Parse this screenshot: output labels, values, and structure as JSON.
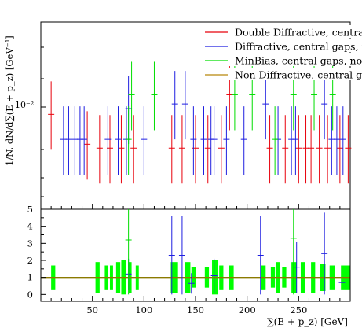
{
  "chart_data": {
    "type": "histogram",
    "upper": {
      "ylabel": "1/N, dN/d∑(E + p_z) [GeV⁻¹]",
      "ytick_label": "10⁻²",
      "xlim": [
        0,
        300
      ],
      "log_y": true,
      "legend_placement": "top-right",
      "series": [
        {
          "name": "Double Diffractive, central gaps, no jet",
          "color": "#e8000b",
          "points": [
            [
              10,
              0.0091
            ],
            [
              45,
              0.0062
            ],
            [
              57,
              0.0059
            ],
            [
              67,
              0.0059
            ],
            [
              78,
              0.0059
            ],
            [
              90,
              0.0059
            ],
            [
              127,
              0.0059
            ],
            [
              137,
              0.0059
            ],
            [
              150,
              0.0059
            ],
            [
              162,
              0.0059
            ],
            [
              175,
              0.0059
            ],
            [
              183,
              0.0117
            ],
            [
              222,
              0.0059
            ],
            [
              237,
              0.0059
            ],
            [
              250,
              0.0059
            ],
            [
              257,
              0.0059
            ],
            [
              262,
              0.0059
            ],
            [
              270,
              0.0059
            ],
            [
              278,
              0.0059
            ],
            [
              290,
              0.0059
            ],
            [
              298,
              0.0059
            ]
          ]
        },
        {
          "name": "Diffractive, central gaps, no jet",
          "color": "#1f1fe0",
          "points": [
            [
              22,
              0.0066
            ],
            [
              27,
              0.0066
            ],
            [
              33,
              0.0066
            ],
            [
              38,
              0.0066
            ],
            [
              42,
              0.0066
            ],
            [
              65,
              0.0066
            ],
            [
              75,
              0.0066
            ],
            [
              83,
              0.0066
            ],
            [
              85,
              0.0098
            ],
            [
              100,
              0.0066
            ],
            [
              130,
              0.0104
            ],
            [
              140,
              0.0104
            ],
            [
              148,
              0.0066
            ],
            [
              158,
              0.0066
            ],
            [
              165,
              0.0066
            ],
            [
              168,
              0.0066
            ],
            [
              180,
              0.0066
            ],
            [
              197,
              0.0066
            ],
            [
              218,
              0.0104
            ],
            [
              230,
              0.0066
            ],
            [
              243,
              0.0066
            ],
            [
              247,
              0.0066
            ],
            [
              275,
              0.0104
            ],
            [
              282,
              0.0066
            ],
            [
              287,
              0.0066
            ],
            [
              293,
              0.0066
            ]
          ]
        },
        {
          "name": "MinBias, central gaps, no jet",
          "color": "#00dd00",
          "points": [
            [
              85,
              0.0066
            ],
            [
              88,
              0.0117
            ],
            [
              110,
              0.0117
            ],
            [
              188,
              0.0117
            ],
            [
              205,
              0.0117
            ],
            [
              227,
              0.0066
            ],
            [
              245,
              0.0117
            ],
            [
              265,
              0.0117
            ],
            [
              283,
              0.0117
            ]
          ]
        },
        {
          "name": "Non Diffractive, central gaps, no jet",
          "color": "#b8860b",
          "points": []
        }
      ]
    },
    "lower": {
      "yticks": [
        0,
        1,
        2,
        3,
        4,
        5
      ],
      "ylim": [
        -0.4,
        5
      ],
      "reference_line": 1,
      "band": {
        "color": "#00ff00",
        "bins": [
          [
            10,
            14,
            1.0,
            0.7
          ],
          [
            53,
            57,
            1.0,
            0.9
          ],
          [
            62,
            65,
            1.0,
            0.7
          ],
          [
            67,
            70,
            1.0,
            0.7
          ],
          [
            73,
            77,
            1.0,
            0.9
          ],
          [
            78,
            83,
            1.0,
            1.0
          ],
          [
            85,
            88,
            1.0,
            0.9
          ],
          [
            92,
            95,
            1.0,
            0.7
          ],
          [
            126,
            133,
            1.0,
            0.9
          ],
          [
            140,
            145,
            1.0,
            0.9
          ],
          [
            146,
            150,
            1.0,
            0.6
          ],
          [
            159,
            163,
            1.0,
            0.6
          ],
          [
            166,
            172,
            1.0,
            1.0
          ],
          [
            173,
            177,
            1.0,
            0.7
          ],
          [
            182,
            187,
            1.0,
            0.7
          ],
          [
            213,
            218,
            1.0,
            0.7
          ],
          [
            223,
            227,
            1.0,
            0.6
          ],
          [
            228,
            232,
            1.0,
            0.9
          ],
          [
            234,
            238,
            1.0,
            0.6
          ],
          [
            243,
            248,
            1.0,
            0.9
          ],
          [
            252,
            256,
            1.0,
            0.9
          ],
          [
            262,
            266,
            1.0,
            0.9
          ],
          [
            271,
            276,
            1.0,
            0.8
          ],
          [
            280,
            285,
            1.0,
            0.7
          ],
          [
            291,
            300,
            1.0,
            0.7
          ]
        ]
      },
      "ratio_points": [
        {
          "color": "#1f1fe0",
          "x": 85,
          "y": 1.2,
          "err": 0.9
        },
        {
          "color": "#1f1fe0",
          "x": 127,
          "y": 2.3,
          "err": 2.3
        },
        {
          "color": "#1f1fe0",
          "x": 137,
          "y": 2.3,
          "err": 2.3
        },
        {
          "color": "#1f1fe0",
          "x": 146,
          "y": 0.65,
          "err": 0.6
        },
        {
          "color": "#1f1fe0",
          "x": 168,
          "y": 1.1,
          "err": 1.0
        },
        {
          "color": "#1f1fe0",
          "x": 213,
          "y": 2.3,
          "err": 2.3
        },
        {
          "color": "#1f1fe0",
          "x": 248,
          "y": 1.6,
          "err": 1.5
        },
        {
          "color": "#1f1fe0",
          "x": 275,
          "y": 2.4,
          "err": 2.4
        },
        {
          "color": "#1f1fe0",
          "x": 292,
          "y": 0.7,
          "err": 0.5
        },
        {
          "color": "#00dd00",
          "x": 85,
          "y": 3.2,
          "err": 3.2
        },
        {
          "color": "#00dd00",
          "x": 245,
          "y": 3.3,
          "err": 3.3
        }
      ]
    },
    "xlabel": "∑(E + p_z) [GeV]",
    "xticks": [
      50,
      100,
      150,
      200,
      250
    ]
  }
}
